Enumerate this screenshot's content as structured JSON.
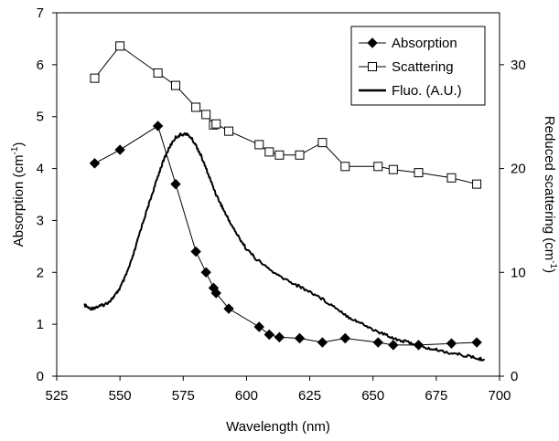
{
  "chart_data": {
    "type": "line",
    "x_axis": {
      "label": "Wavelength (nm)",
      "range": [
        525,
        700
      ],
      "ticks": [
        "525",
        "550",
        "575",
        "600",
        "625",
        "650",
        "675",
        "700"
      ]
    },
    "y_left": {
      "label": "Absorption (cm",
      "label_sup": "-1",
      "label_close": ")",
      "range": [
        0,
        7
      ],
      "ticks": [
        "0",
        "1",
        "2",
        "3",
        "4",
        "5",
        "6",
        "7"
      ]
    },
    "y_right": {
      "label": "Reduced scattering (cm",
      "label_sup": "-1",
      "label_close": ")",
      "range": [
        0,
        35
      ],
      "ticks": [
        "0",
        "10",
        "20",
        "30"
      ]
    },
    "legend": {
      "position": "top-right",
      "entries": [
        "Absorption",
        "Scattering",
        "Fluo. (A.U.)"
      ]
    },
    "series": [
      {
        "name": "Absorption",
        "axis": "left",
        "marker": "diamond-filled",
        "x": [
          540,
          550,
          565,
          572,
          580,
          584,
          587,
          588,
          593,
          605,
          609,
          613,
          621,
          630,
          639,
          652,
          658,
          668,
          681,
          691
        ],
        "y": [
          4.1,
          4.36,
          4.82,
          3.7,
          2.4,
          2.0,
          1.7,
          1.6,
          1.3,
          0.95,
          0.8,
          0.75,
          0.73,
          0.65,
          0.73,
          0.65,
          0.6,
          0.6,
          0.63,
          0.65
        ]
      },
      {
        "name": "Scattering",
        "axis": "right",
        "marker": "square-open",
        "x": [
          540,
          550,
          565,
          572,
          580,
          584,
          587,
          588,
          593,
          605,
          609,
          613,
          621,
          630,
          639,
          652,
          658,
          668,
          681,
          691
        ],
        "y": [
          28.7,
          31.8,
          29.2,
          28.0,
          25.9,
          25.2,
          24.2,
          24.3,
          23.6,
          22.3,
          21.6,
          21.3,
          21.3,
          22.5,
          20.2,
          20.2,
          19.9,
          19.6,
          19.1,
          18.5
        ]
      },
      {
        "name": "Fluo. (A.U.)",
        "axis": "left",
        "marker": "none",
        "x": [
          536,
          538,
          540,
          542,
          544,
          546,
          548,
          550,
          552,
          554,
          556,
          558,
          560,
          562,
          564,
          566,
          568,
          570,
          572,
          574,
          576,
          578,
          580,
          582,
          584,
          586,
          588,
          590,
          592,
          594,
          596,
          598,
          600,
          604,
          608,
          612,
          616,
          620,
          624,
          628,
          632,
          636,
          640,
          644,
          648,
          652,
          656,
          660,
          664,
          668,
          672,
          676,
          680,
          684,
          688,
          692,
          694
        ],
        "y": [
          1.37,
          1.3,
          1.32,
          1.35,
          1.38,
          1.45,
          1.55,
          1.7,
          1.9,
          2.15,
          2.45,
          2.8,
          3.1,
          3.4,
          3.7,
          4.0,
          4.25,
          4.45,
          4.6,
          4.65,
          4.67,
          4.6,
          4.45,
          4.25,
          4.0,
          3.75,
          3.5,
          3.3,
          3.1,
          2.92,
          2.75,
          2.6,
          2.45,
          2.25,
          2.1,
          1.95,
          1.85,
          1.75,
          1.65,
          1.55,
          1.42,
          1.3,
          1.15,
          1.05,
          0.95,
          0.85,
          0.78,
          0.7,
          0.65,
          0.6,
          0.53,
          0.5,
          0.45,
          0.42,
          0.38,
          0.33,
          0.33
        ]
      }
    ]
  }
}
